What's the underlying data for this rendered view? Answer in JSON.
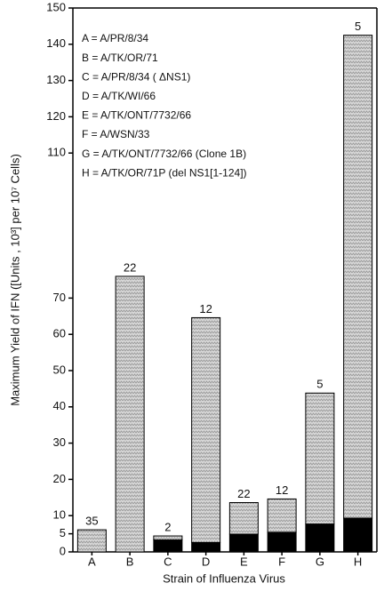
{
  "chart_data": {
    "type": "stacked-bar",
    "x_label": "Strain of Influenza Virus",
    "y_label": "Maximum Yield of IFN ([Units , 10³] per 10⁷ Cells)",
    "categories": [
      "A",
      "B",
      "C",
      "D",
      "E",
      "F",
      "G",
      "H"
    ],
    "series": [
      {
        "color": "#000000",
        "values": [
          0,
          0,
          3.3,
          2.6,
          4.9,
          5.4,
          7.7,
          9.3
        ]
      },
      {
        "color": "#9a9a9a",
        "values": [
          6.1,
          76,
          1.1,
          62,
          8.7,
          9.2,
          36.1,
          133.2
        ]
      }
    ],
    "bar_labels": [
      35,
      22,
      2,
      12,
      22,
      12,
      5,
      5
    ],
    "legend_lines": [
      "A = A/PR/8/34",
      "B = A/TK/OR/71",
      "C = A/PR/8/34 ( ΔNS1)",
      "D = A/TK/WI/66",
      "E = A/TK/ONT/7732/66",
      "F = A/WSN/33",
      "G = A/TK/ONT/7732/66 (Clone 1B)",
      "H = A/TK/OR/71P (del NS1[1-124])"
    ],
    "ylim": [
      0,
      150
    ],
    "yticks": [
      0,
      5,
      10,
      20,
      30,
      40,
      50,
      60,
      70,
      110,
      120,
      130,
      140,
      150
    ]
  }
}
